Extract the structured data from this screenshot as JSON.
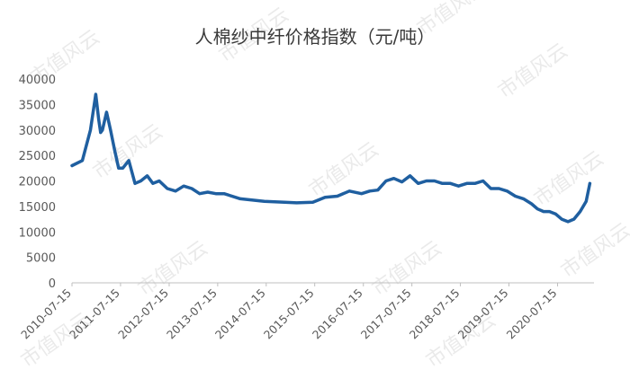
{
  "chart_data": {
    "type": "line",
    "title": "人棉纱中纤价格指数（元/吨）",
    "xlabel": "",
    "ylabel": "",
    "ylim": [
      0,
      40000
    ],
    "yticks": [
      0,
      5000,
      10000,
      15000,
      20000,
      25000,
      30000,
      35000,
      40000
    ],
    "xlim": [
      "2010-07-15",
      "2021-04-15"
    ],
    "xticks": [
      "2010-07-15",
      "2011-07-15",
      "2012-07-15",
      "2013-07-15",
      "2014-07-15",
      "2015-07-15",
      "2016-07-15",
      "2017-07-15",
      "2018-07-15",
      "2019-07-15",
      "2020-07-15"
    ],
    "grid": false,
    "legend": "none",
    "color": "#1f5fa0",
    "x": [
      "2010-07-15",
      "2010-10-01",
      "2010-12-01",
      "2011-01-10",
      "2011-02-01",
      "2011-02-15",
      "2011-03-01",
      "2011-04-01",
      "2011-05-01",
      "2011-06-01",
      "2011-07-01",
      "2011-08-01",
      "2011-09-15",
      "2011-11-01",
      "2011-12-15",
      "2012-02-01",
      "2012-03-15",
      "2012-05-01",
      "2012-07-01",
      "2012-09-01",
      "2012-11-01",
      "2013-01-01",
      "2013-03-01",
      "2013-05-01",
      "2013-07-01",
      "2013-09-01",
      "2014-01-01",
      "2014-07-01",
      "2014-12-01",
      "2015-03-01",
      "2015-07-01",
      "2015-10-01",
      "2016-01-01",
      "2016-04-01",
      "2016-07-01",
      "2016-09-01",
      "2016-11-01",
      "2017-01-01",
      "2017-03-01",
      "2017-05-01",
      "2017-07-01",
      "2017-09-01",
      "2017-11-01",
      "2018-01-01",
      "2018-03-01",
      "2018-05-01",
      "2018-07-01",
      "2018-09-01",
      "2018-11-01",
      "2019-01-01",
      "2019-03-01",
      "2019-05-01",
      "2019-07-01",
      "2019-09-01",
      "2019-11-01",
      "2020-01-01",
      "2020-02-15",
      "2020-04-01",
      "2020-05-15",
      "2020-07-01",
      "2020-08-15",
      "2020-10-01",
      "2020-11-15",
      "2021-01-01",
      "2021-02-15",
      "2021-03-15"
    ],
    "series": [
      {
        "values": [
          23000,
          24000,
          30000,
          37000,
          32000,
          29500,
          30000,
          33500,
          30000,
          26000,
          22500,
          22500,
          24000,
          19500,
          20000,
          21000,
          19500,
          20000,
          18500,
          18000,
          19000,
          18500,
          17500,
          17800,
          17500,
          17500,
          16500,
          16000,
          15800,
          15700,
          15800,
          16800,
          17000,
          18000,
          17500,
          18000,
          18200,
          20000,
          20500,
          19800,
          21000,
          19500,
          20000,
          20000,
          19500,
          19500,
          19000,
          19500,
          19500,
          20000,
          18500,
          18500,
          18000,
          17000,
          16500,
          15500,
          14500,
          14000,
          14000,
          13500,
          12500,
          12000,
          12500,
          14000,
          16000,
          19500
        ]
      }
    ]
  },
  "watermark": "市值风云"
}
